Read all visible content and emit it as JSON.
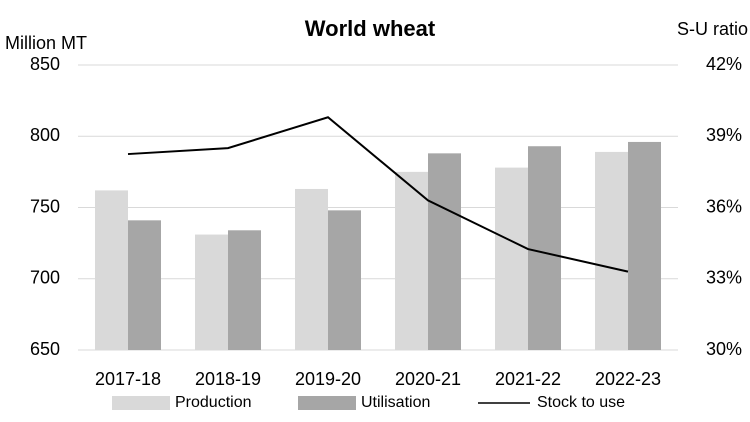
{
  "chart_data": {
    "type": "bar",
    "title": "World wheat",
    "y_axis_label": "Million MT",
    "y2_axis_label": "S-U ratio",
    "categories": [
      "2017-18",
      "2018-19",
      "2019-20",
      "2020-21",
      "2021-22",
      "2022-23"
    ],
    "series": [
      {
        "name": "Production",
        "color": "#d9d9d9",
        "type": "bar",
        "values": [
          762,
          731,
          763,
          775,
          778,
          789
        ]
      },
      {
        "name": "Utilisation",
        "color": "#a6a6a6",
        "type": "bar",
        "values": [
          741,
          734,
          748,
          788,
          793,
          796
        ]
      },
      {
        "name": "Stock to use",
        "color": "#000000",
        "type": "line",
        "axis": "y2",
        "values": [
          38.25,
          38.5,
          39.8,
          36.3,
          34.25,
          33.3
        ]
      }
    ],
    "ylim": [
      650,
      850
    ],
    "yticks": [
      650,
      700,
      750,
      800,
      850
    ],
    "y2lim": [
      30,
      42
    ],
    "y2ticks": [
      {
        "value": 30,
        "label": "30%"
      },
      {
        "value": 33,
        "label": "33%"
      },
      {
        "value": 36,
        "label": "36%"
      },
      {
        "value": 39,
        "label": "39%"
      },
      {
        "value": 42,
        "label": "42%"
      }
    ],
    "grid": true,
    "legend": "bottom"
  }
}
